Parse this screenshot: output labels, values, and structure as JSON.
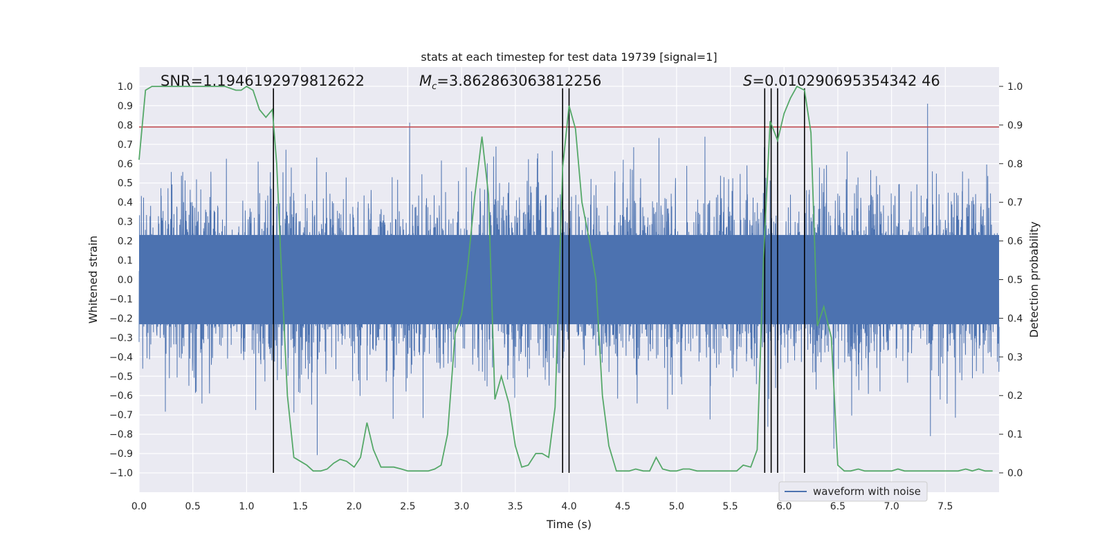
{
  "chart_data": {
    "type": "line",
    "title": "stats at each timestep for test data 19739 [signal=1]",
    "xlabel": "Time (s)",
    "ylabel": "Whitened strain",
    "y2label": "Detection probability",
    "xlim": [
      0.0,
      8.0
    ],
    "ylim": [
      -1.1,
      1.1
    ],
    "y2lim": [
      -0.05,
      1.05
    ],
    "xticks": [
      "0.0",
      "0.5",
      "1.0",
      "1.5",
      "2.0",
      "2.5",
      "3.0",
      "3.5",
      "4.0",
      "4.5",
      "5.0",
      "5.5",
      "6.0",
      "6.5",
      "7.0",
      "7.5"
    ],
    "yticks": [
      "1.0",
      "0.9",
      "0.8",
      "0.7",
      "0.6",
      "0.5",
      "0.4",
      "0.3",
      "0.2",
      "0.1",
      "0.0",
      "−0.1",
      "−0.2",
      "−0.3",
      "−0.4",
      "−0.5",
      "−0.6",
      "−0.7",
      "−0.8",
      "−0.9",
      "−1.0"
    ],
    "y2ticks": [
      "1.0",
      "0.9",
      "0.8",
      "0.7",
      "0.6",
      "0.5",
      "0.4",
      "0.3",
      "0.2",
      "0.1",
      "0.0"
    ],
    "grid": true,
    "legend": {
      "position": "lower-right",
      "entries": [
        "waveform with noise"
      ]
    },
    "annotations": {
      "snr_label": "SNR=1.1946192979812622",
      "mc_symbol": "M",
      "mc_sub": "c",
      "mc_value": "=3.862863063812256",
      "s_symbol": "S",
      "s_value": "=0.010290695354342 46"
    },
    "threshold": {
      "value": 0.79,
      "color": "#c44e52"
    },
    "event_lines_s": [
      1.25,
      3.94,
      4.0,
      5.82,
      5.88,
      5.94,
      6.19
    ],
    "series": [
      {
        "name": "waveform with noise",
        "color": "#4c72b0",
        "axis": "left",
        "sample_rate_hz": 2048,
        "typical_envelope": [
          -0.42,
          0.42
        ],
        "extremes": {
          "max": 0.98,
          "min": -1.0
        }
      },
      {
        "name": "detection probability",
        "color": "#55a868",
        "axis": "right",
        "x": [
          0.0,
          0.06,
          0.12,
          0.2,
          0.3,
          0.4,
          0.5,
          0.6,
          0.7,
          0.8,
          0.9,
          0.95,
          1.0,
          1.06,
          1.12,
          1.18,
          1.24,
          1.28,
          1.32,
          1.38,
          1.44,
          1.5,
          1.56,
          1.62,
          1.69,
          1.75,
          1.81,
          1.87,
          1.93,
          2.0,
          2.06,
          2.12,
          2.18,
          2.25,
          2.31,
          2.37,
          2.44,
          2.5,
          2.56,
          2.62,
          2.69,
          2.75,
          2.81,
          2.87,
          2.94,
          3.0,
          3.06,
          3.12,
          3.19,
          3.25,
          3.31,
          3.37,
          3.44,
          3.5,
          3.56,
          3.62,
          3.69,
          3.75,
          3.81,
          3.87,
          3.94,
          4.0,
          4.06,
          4.12,
          4.19,
          4.25,
          4.31,
          4.37,
          4.44,
          4.5,
          4.56,
          4.62,
          4.69,
          4.75,
          4.81,
          4.87,
          4.94,
          5.0,
          5.06,
          5.12,
          5.19,
          5.25,
          5.31,
          5.37,
          5.44,
          5.5,
          5.56,
          5.62,
          5.69,
          5.75,
          5.81,
          5.87,
          5.94,
          6.0,
          6.06,
          6.12,
          6.19,
          6.25,
          6.31,
          6.37,
          6.44,
          6.5,
          6.56,
          6.62,
          6.69,
          6.75,
          6.81,
          6.87,
          6.94,
          7.0,
          7.06,
          7.12,
          7.19,
          7.25,
          7.31,
          7.37,
          7.44,
          7.5,
          7.56,
          7.62,
          7.69,
          7.75,
          7.81,
          7.87,
          7.94
        ],
        "values": [
          0.81,
          0.99,
          1.0,
          1.0,
          1.0,
          1.0,
          1.0,
          1.0,
          1.0,
          1.0,
          0.99,
          0.99,
          1.0,
          0.99,
          0.94,
          0.92,
          0.94,
          0.8,
          0.55,
          0.2,
          0.04,
          0.03,
          0.02,
          0.005,
          0.005,
          0.01,
          0.025,
          0.035,
          0.03,
          0.015,
          0.04,
          0.13,
          0.06,
          0.015,
          0.015,
          0.015,
          0.01,
          0.005,
          0.005,
          0.005,
          0.005,
          0.01,
          0.02,
          0.1,
          0.36,
          0.41,
          0.54,
          0.71,
          0.87,
          0.72,
          0.19,
          0.25,
          0.18,
          0.07,
          0.015,
          0.02,
          0.05,
          0.05,
          0.04,
          0.17,
          0.79,
          0.95,
          0.89,
          0.7,
          0.6,
          0.5,
          0.2,
          0.07,
          0.005,
          0.005,
          0.005,
          0.01,
          0.005,
          0.005,
          0.04,
          0.01,
          0.005,
          0.005,
          0.01,
          0.01,
          0.005,
          0.005,
          0.005,
          0.005,
          0.005,
          0.005,
          0.005,
          0.02,
          0.015,
          0.06,
          0.56,
          0.91,
          0.86,
          0.93,
          0.97,
          1.0,
          0.99,
          0.88,
          0.38,
          0.43,
          0.35,
          0.02,
          0.005,
          0.005,
          0.01,
          0.005,
          0.005,
          0.005,
          0.005,
          0.005,
          0.01,
          0.005,
          0.005,
          0.005,
          0.005,
          0.005,
          0.005,
          0.005,
          0.005,
          0.005,
          0.01,
          0.005,
          0.01,
          0.005,
          0.005
        ]
      }
    ]
  }
}
